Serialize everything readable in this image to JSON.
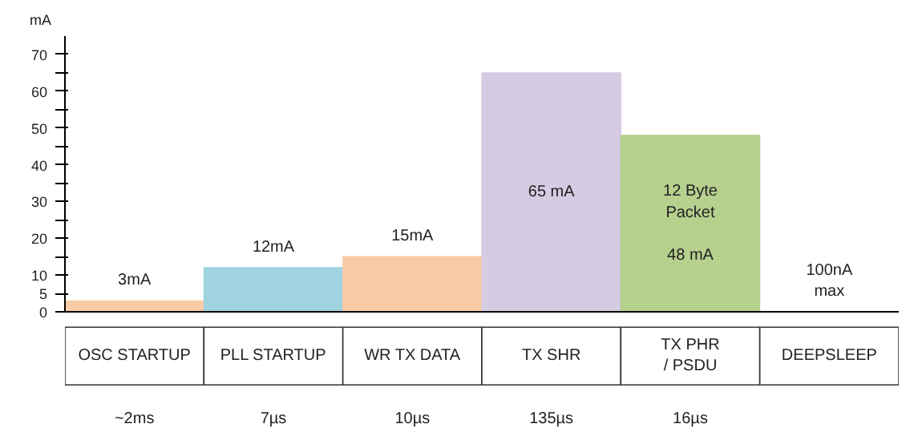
{
  "chart_data": {
    "type": "bar",
    "ylabel": "mA",
    "categories": [
      "OSC STARTUP",
      "PLL STARTUP",
      "WR TX DATA",
      "TX SHR",
      "TX PHR / PSDU",
      "DEEPSLEEP"
    ],
    "values": [
      3,
      12,
      15,
      65,
      48,
      0
    ],
    "colors": [
      "#f8cba6",
      "#9fd3e0",
      "#f8cba6",
      "#d5cbe2",
      "#b6d08e",
      "#ffffff"
    ],
    "value_labels": [
      "3mA",
      "12mA",
      "15mA",
      "65 mA",
      "12 Byte\nPacket\n\n48 mA",
      null
    ],
    "ylim": [
      0,
      75
    ],
    "yticks": [
      0,
      5,
      10,
      {
        "value": 15,
        "label": null
      },
      20,
      {
        "value": 25,
        "label": null
      },
      30,
      {
        "value": 35,
        "label": null
      },
      40,
      {
        "value": 45,
        "label": null
      },
      50,
      {
        "value": 55,
        "label": null
      },
      60,
      {
        "value": 65,
        "label": null
      },
      70
    ],
    "tick_labels": "y",
    "grid": false,
    "annotations": [
      "~2ms",
      "7µs",
      "10µs",
      "135µs",
      "16µs",
      {
        "text": "100nA\nmax",
        "x": "DEEPSLEEP",
        "y": 0
      }
    ]
  }
}
